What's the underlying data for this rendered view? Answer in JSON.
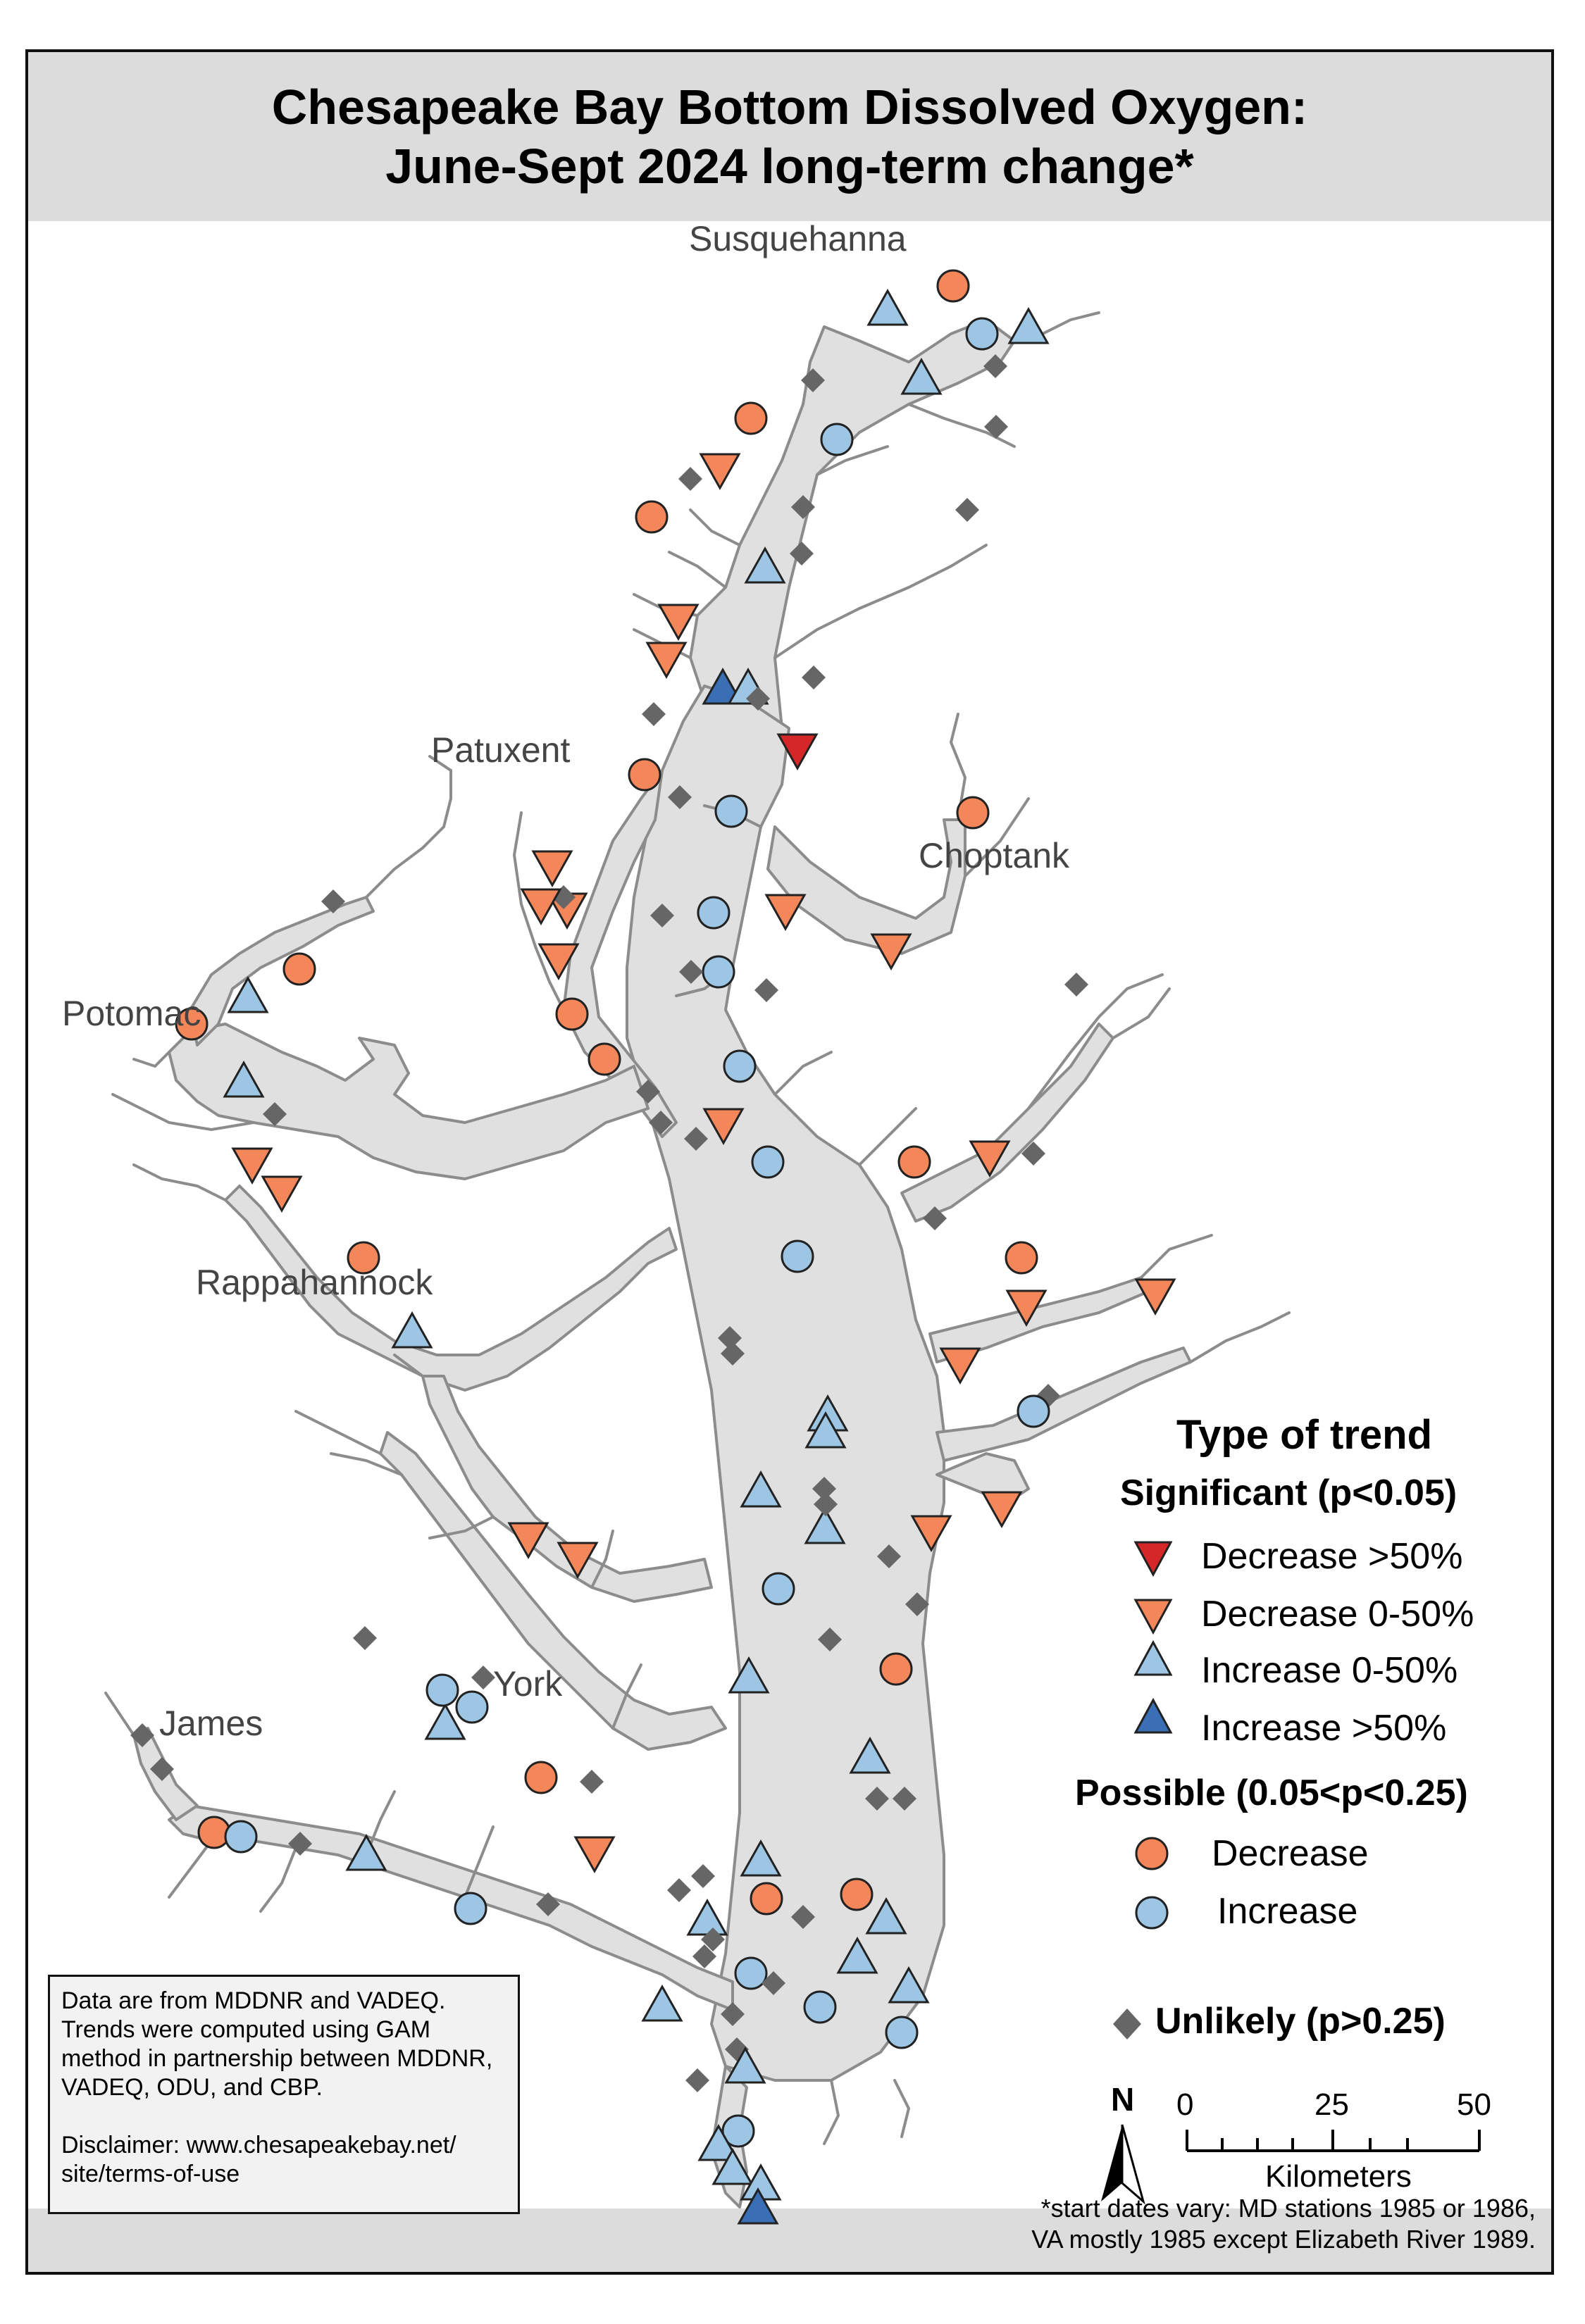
{
  "title": {
    "line1": "Chesapeake Bay Bottom Dissolved Oxygen:",
    "line2": "June-Sept 2024 long-term change*"
  },
  "rivers": {
    "susquehanna": "Susquehanna",
    "patuxent": "Patuxent",
    "choptank": "Choptank",
    "potomac": "Potomac",
    "rappahannock": "Rappahannock",
    "york": "York",
    "james": "James"
  },
  "legend": {
    "heading": "Type of trend",
    "significant": "Significant (p<0.05)",
    "sig_items": [
      {
        "label": "Decrease >50%",
        "symbol": "triangle-down",
        "color": "#d62728"
      },
      {
        "label": "Decrease 0-50%",
        "symbol": "triangle-down",
        "color": "#f4875a"
      },
      {
        "label": "Increase 0-50%",
        "symbol": "triangle-up",
        "color": "#9cc6e4"
      },
      {
        "label": "Increase >50%",
        "symbol": "triangle-up",
        "color": "#3a6fb5"
      }
    ],
    "possible": "Possible (0.05<p<0.25)",
    "pos_items": [
      {
        "label": "Decrease",
        "symbol": "circle",
        "color": "#f4875a"
      },
      {
        "label": "Increase",
        "symbol": "circle",
        "color": "#9cc6e4"
      }
    ],
    "unlikely": "Unlikely (p>0.25)",
    "unlikely_color": "#666666"
  },
  "note": {
    "line1": "Data are from MDDNR and VADEQ. Trends were computed using GAM method in partnership between MDDNR, VADEQ, ODU, and CBP.",
    "line2": "Disclaimer: www.chesapeakebay.net/ site/terms-of-use"
  },
  "scale": {
    "ticks": [
      "0",
      "25",
      "50"
    ],
    "unit": "Kilometers"
  },
  "north": "N",
  "footnote": {
    "line1": "*start dates vary: MD stations 1985 or 1986,",
    "line2": "VA mostly 1985 except Elizabeth River 1989."
  },
  "colors": {
    "water": "#e0e0e0",
    "shore": "#8c8c8c",
    "decrease_strong": "#d62728",
    "decrease": "#f4875a",
    "increase": "#9cc6e4",
    "increase_strong": "#3a6fb5",
    "unlikely": "#666666"
  },
  "stations": [
    {
      "type": "circle-dec"
    },
    {
      "type": "tri-up"
    },
    {
      "type": "circle-inc"
    },
    {
      "type": "tri-up"
    },
    {
      "type": "tri-up"
    },
    {
      "type": "diamond"
    },
    {
      "type": "diamond"
    },
    {
      "type": "diamond"
    },
    {
      "type": "circle-dec"
    },
    {
      "type": "circle-inc"
    },
    {
      "type": "tri-down"
    },
    {
      "type": "diamond"
    },
    {
      "type": "diamond"
    },
    {
      "type": "circle-dec"
    },
    {
      "type": "diamond"
    },
    {
      "type": "diamond"
    },
    {
      "type": "tri-up"
    },
    {
      "type": "tri-down"
    },
    {
      "type": "tri-down"
    },
    {
      "type": "tri-up-strong"
    },
    {
      "type": "tri-up"
    },
    {
      "type": "diamond"
    },
    {
      "type": "diamond"
    },
    {
      "type": "tri-down-strong"
    },
    {
      "type": "circle-dec"
    },
    {
      "type": "diamond"
    },
    {
      "type": "circle-inc"
    },
    {
      "type": "circle-dec"
    },
    {
      "type": "tri-down"
    },
    {
      "type": "diamond"
    },
    {
      "type": "tri-down"
    },
    {
      "type": "diamond"
    },
    {
      "type": "circle-inc"
    },
    {
      "type": "tri-down"
    },
    {
      "type": "tri-down"
    },
    {
      "type": "diamond"
    },
    {
      "type": "circle-inc"
    },
    {
      "type": "diamond"
    },
    {
      "type": "diamond"
    },
    {
      "type": "diamond"
    },
    {
      "type": "circle-dec"
    },
    {
      "type": "circle-dec"
    },
    {
      "type": "circle-inc"
    },
    {
      "type": "diamond"
    },
    {
      "type": "diamond"
    },
    {
      "type": "tri-down"
    },
    {
      "type": "diamond"
    },
    {
      "type": "circle-inc"
    },
    {
      "type": "circle-dec"
    },
    {
      "type": "tri-down"
    },
    {
      "type": "diamond"
    },
    {
      "type": "diamond"
    },
    {
      "type": "circle-inc"
    },
    {
      "type": "circle-dec"
    },
    {
      "type": "tri-down"
    },
    {
      "type": "tri-down"
    },
    {
      "type": "tri-down"
    },
    {
      "type": "diamond"
    },
    {
      "type": "circle-inc"
    },
    {
      "type": "tri-up"
    },
    {
      "type": "diamond"
    },
    {
      "type": "tri-up"
    },
    {
      "type": "diamond"
    },
    {
      "type": "tri-up"
    },
    {
      "type": "tri-up"
    },
    {
      "type": "diamond"
    },
    {
      "type": "tri-down"
    },
    {
      "type": "tri-down"
    },
    {
      "type": "circle-dec"
    },
    {
      "type": "tri-up"
    },
    {
      "type": "tri-up"
    },
    {
      "type": "diamond"
    },
    {
      "type": "diamond"
    },
    {
      "type": "tri-down"
    },
    {
      "type": "tri-down"
    },
    {
      "type": "circle-dec"
    },
    {
      "type": "tri-down"
    },
    {
      "type": "tri-down"
    },
    {
      "type": "tri-down"
    },
    {
      "type": "tri-down"
    },
    {
      "type": "circle-dec"
    },
    {
      "type": "tri-up"
    },
    {
      "type": "circle-inc"
    },
    {
      "type": "diamond"
    },
    {
      "type": "diamond"
    },
    {
      "type": "tri-up"
    },
    {
      "type": "diamond"
    },
    {
      "type": "diamond"
    },
    {
      "type": "tri-up"
    },
    {
      "type": "diamond"
    },
    {
      "type": "diamond"
    },
    {
      "type": "circle-dec"
    },
    {
      "type": "circle-dec"
    },
    {
      "type": "tri-up"
    },
    {
      "type": "diamond"
    },
    {
      "type": "tri-up"
    },
    {
      "type": "diamond"
    },
    {
      "type": "circle-inc"
    },
    {
      "type": "diamond"
    },
    {
      "type": "circle-dec"
    },
    {
      "type": "circle-inc"
    },
    {
      "type": "circle-dec"
    },
    {
      "type": "tri-down"
    },
    {
      "type": "diamond"
    },
    {
      "type": "diamond"
    },
    {
      "type": "diamond"
    },
    {
      "type": "diamond"
    },
    {
      "type": "circle-dec"
    },
    {
      "type": "circle-inc"
    },
    {
      "type": "diamond"
    },
    {
      "type": "tri-up"
    },
    {
      "type": "circle-inc"
    },
    {
      "type": "diamond"
    },
    {
      "type": "tri-up"
    },
    {
      "type": "diamond"
    },
    {
      "type": "diamond"
    },
    {
      "type": "circle-inc"
    },
    {
      "type": "diamond"
    },
    {
      "type": "tri-up"
    },
    {
      "type": "tri-up"
    },
    {
      "type": "tri-up"
    },
    {
      "type": "circle-inc"
    },
    {
      "type": "diamond"
    },
    {
      "type": "circle-inc"
    },
    {
      "type": "diamond"
    },
    {
      "type": "tri-up"
    },
    {
      "type": "diamond"
    },
    {
      "type": "tri-up"
    },
    {
      "type": "diamond"
    },
    {
      "type": "circle-inc"
    },
    {
      "type": "tri-up"
    },
    {
      "type": "tri-up"
    },
    {
      "type": "tri-up"
    },
    {
      "type": "tri-up-strong"
    }
  ]
}
